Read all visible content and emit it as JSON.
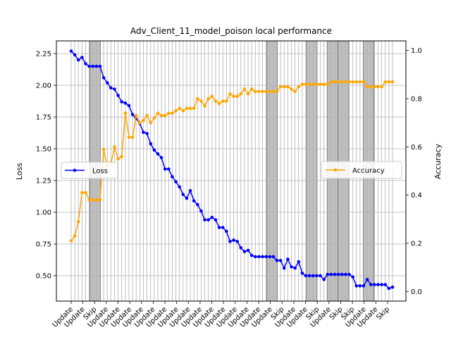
{
  "chart_data": {
    "type": "line",
    "title": "Adv_Client_11_model_poison local performance",
    "xlabel": "",
    "ylabel": "Loss",
    "y2label": "Accuracy",
    "ylim": [
      0.3,
      2.35
    ],
    "y2lim": [
      -0.04,
      1.04
    ],
    "yticks": [
      "0.50",
      "0.75",
      "1.00",
      "1.25",
      "1.50",
      "1.75",
      "2.00",
      "2.25"
    ],
    "y2ticks": [
      "0.0",
      "0.2",
      "0.4",
      "0.6",
      "0.8",
      "1.0"
    ],
    "grid": true,
    "xtick_labels": [
      "Update",
      "Update",
      "Skip",
      "Update",
      "Update",
      "Update",
      "Update",
      "Update",
      "Update",
      "Update",
      "Update",
      "Update",
      "Update",
      "Update",
      "Update",
      "Update",
      "Update",
      "Update",
      "Skip",
      "Update",
      "Update",
      "Skip",
      "Update",
      "Skip",
      "Skip",
      "Update",
      "Update",
      "Skip"
    ],
    "skip_bands": [
      [
        5.2,
        8.1
      ],
      [
        54.2,
        57.1
      ],
      [
        65.1,
        68.1
      ],
      [
        70.9,
        73.9
      ],
      [
        73.9,
        76.9
      ],
      [
        80.9,
        83.8
      ]
    ],
    "series": [
      {
        "name": "Loss",
        "axis": "left",
        "color": "#0000ff",
        "legend": "center-left",
        "values": [
          2.27,
          2.24,
          2.2,
          2.22,
          2.17,
          2.15,
          2.15,
          2.15,
          2.15,
          2.06,
          2.02,
          1.98,
          1.97,
          1.92,
          1.87,
          1.86,
          1.84,
          1.77,
          1.74,
          1.7,
          1.63,
          1.62,
          1.54,
          1.49,
          1.46,
          1.43,
          1.34,
          1.34,
          1.28,
          1.24,
          1.2,
          1.14,
          1.11,
          1.17,
          1.09,
          1.06,
          1.01,
          0.94,
          0.94,
          0.96,
          0.94,
          0.88,
          0.88,
          0.85,
          0.77,
          0.78,
          0.77,
          0.72,
          0.69,
          0.7,
          0.66,
          0.65,
          0.65,
          0.65,
          0.65,
          0.65,
          0.65,
          0.62,
          0.62,
          0.56,
          0.63,
          0.57,
          0.56,
          0.61,
          0.52,
          0.5,
          0.5,
          0.5,
          0.5,
          0.5,
          0.47,
          0.51,
          0.51,
          0.51,
          0.51,
          0.51,
          0.51,
          0.51,
          0.49,
          0.42,
          0.42,
          0.42,
          0.47,
          0.43,
          0.43,
          0.43,
          0.43,
          0.43,
          0.4,
          0.41
        ]
      },
      {
        "name": "Accuracy",
        "axis": "right",
        "color": "#ffa500",
        "legend": "center-right",
        "values": [
          0.21,
          0.23,
          0.29,
          0.41,
          0.41,
          0.38,
          0.38,
          0.38,
          0.38,
          0.59,
          0.52,
          0.53,
          0.6,
          0.55,
          0.56,
          0.74,
          0.64,
          0.64,
          0.73,
          0.7,
          0.71,
          0.73,
          0.7,
          0.72,
          0.74,
          0.73,
          0.73,
          0.74,
          0.74,
          0.75,
          0.76,
          0.75,
          0.76,
          0.76,
          0.76,
          0.8,
          0.79,
          0.77,
          0.8,
          0.81,
          0.79,
          0.78,
          0.79,
          0.79,
          0.82,
          0.81,
          0.81,
          0.82,
          0.84,
          0.82,
          0.84,
          0.83,
          0.83,
          0.83,
          0.83,
          0.83,
          0.83,
          0.83,
          0.85,
          0.85,
          0.85,
          0.84,
          0.83,
          0.85,
          0.86,
          0.86,
          0.86,
          0.86,
          0.86,
          0.86,
          0.86,
          0.86,
          0.87,
          0.87,
          0.87,
          0.87,
          0.87,
          0.87,
          0.87,
          0.87,
          0.87,
          0.87,
          0.85,
          0.85,
          0.85,
          0.85,
          0.85,
          0.87,
          0.87,
          0.87
        ]
      }
    ]
  }
}
